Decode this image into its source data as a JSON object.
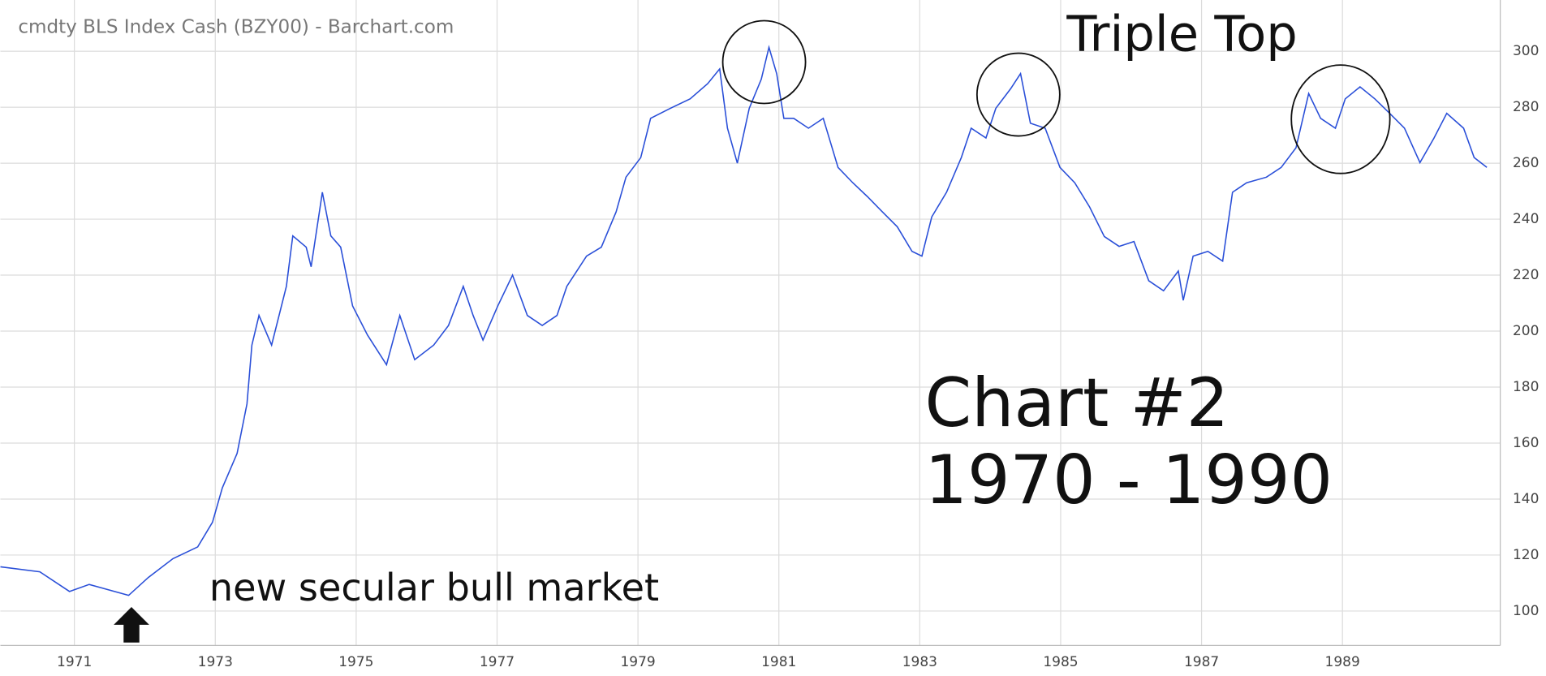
{
  "chart_data": {
    "type": "line",
    "title": "cmdty BLS Index Cash (BZY00) - Barchart.com",
    "annotations": [
      "Triple Top",
      "Chart #2",
      "1970 - 1990",
      "new secular bull market"
    ],
    "x": [
      1969.95,
      1970.51,
      1970.93,
      1971.21,
      1971.77,
      1972.05,
      1972.4,
      1972.75,
      1972.96,
      1973.1,
      1973.31,
      1973.45,
      1973.52,
      1973.62,
      1973.8,
      1974.01,
      1974.1,
      1974.29,
      1974.36,
      1974.52,
      1974.64,
      1974.78,
      1974.95,
      1975.16,
      1975.43,
      1975.62,
      1975.83,
      1976.1,
      1976.31,
      1976.52,
      1976.66,
      1976.8,
      1977.01,
      1977.22,
      1977.43,
      1977.64,
      1977.85,
      1977.99,
      1978.27,
      1978.48,
      1978.69,
      1978.83,
      1979.04,
      1979.18,
      1979.46,
      1979.74,
      1979.99,
      1980.16,
      1980.27,
      1980.41,
      1980.58,
      1980.75,
      1980.86,
      1980.97,
      1981.07,
      1981.21,
      1981.42,
      1981.63,
      1981.84,
      1982.05,
      1982.26,
      1982.47,
      1982.68,
      1982.89,
      1983.03,
      1983.17,
      1983.38,
      1983.59,
      1983.73,
      1983.94,
      1984.08,
      1984.29,
      1984.43,
      1984.57,
      1984.78,
      1984.99,
      1985.2,
      1985.41,
      1985.62,
      1985.83,
      1986.04,
      1986.25,
      1986.46,
      1986.67,
      1986.74,
      1986.88,
      1987.09,
      1987.3,
      1987.44,
      1987.64,
      1987.92,
      1988.13,
      1988.34,
      1988.52,
      1988.69,
      1988.9,
      1989.04,
      1989.25,
      1989.46,
      1989.67,
      1989.88,
      1990.1,
      1990.3,
      1990.48,
      1990.72,
      1990.87,
      1991.05
    ],
    "series": [
      {
        "name": "BZY00",
        "color": "#2a4fd8",
        "values": [
          115.8,
          114,
          107,
          109.5,
          105.6,
          112,
          118.7,
          122.9,
          131.7,
          144,
          156.3,
          174,
          195,
          205.6,
          195,
          216,
          234,
          230,
          223,
          249.6,
          234,
          230,
          209,
          198.6,
          188,
          205.6,
          189.8,
          195,
          202,
          216,
          205.6,
          196.8,
          209,
          220,
          205.6,
          202,
          205.6,
          216,
          226.8,
          230,
          242.6,
          255,
          262,
          276,
          279.6,
          283,
          288.4,
          293.7,
          272.5,
          260,
          279.6,
          290,
          301.4,
          291.9,
          276,
          276,
          272.5,
          276,
          258.5,
          253,
          248,
          242.6,
          237.3,
          228.5,
          226.8,
          240.8,
          249.6,
          262,
          272.5,
          269,
          279.6,
          286.6,
          292,
          274.3,
          272.5,
          258.5,
          253,
          244.4,
          233.8,
          230.3,
          232,
          218,
          214.4,
          221.5,
          211,
          226.8,
          228.5,
          225,
          249.6,
          253,
          255,
          258.5,
          265.5,
          284.9,
          276,
          272.5,
          283,
          287.3,
          283,
          277.8,
          272.5,
          260.2,
          269,
          277.8,
          272.5,
          262,
          258.5
        ]
      }
    ],
    "xlim": [
      1969.95,
      1991.24
    ],
    "xticks": [
      1971,
      1973,
      1975,
      1977,
      1979,
      1981,
      1983,
      1985,
      1987,
      1989
    ],
    "ylim": [
      87.7,
      318.3
    ],
    "yticks": [
      100,
      120,
      140,
      160,
      180,
      200,
      220,
      240,
      260,
      280,
      300
    ],
    "grid": true
  }
}
